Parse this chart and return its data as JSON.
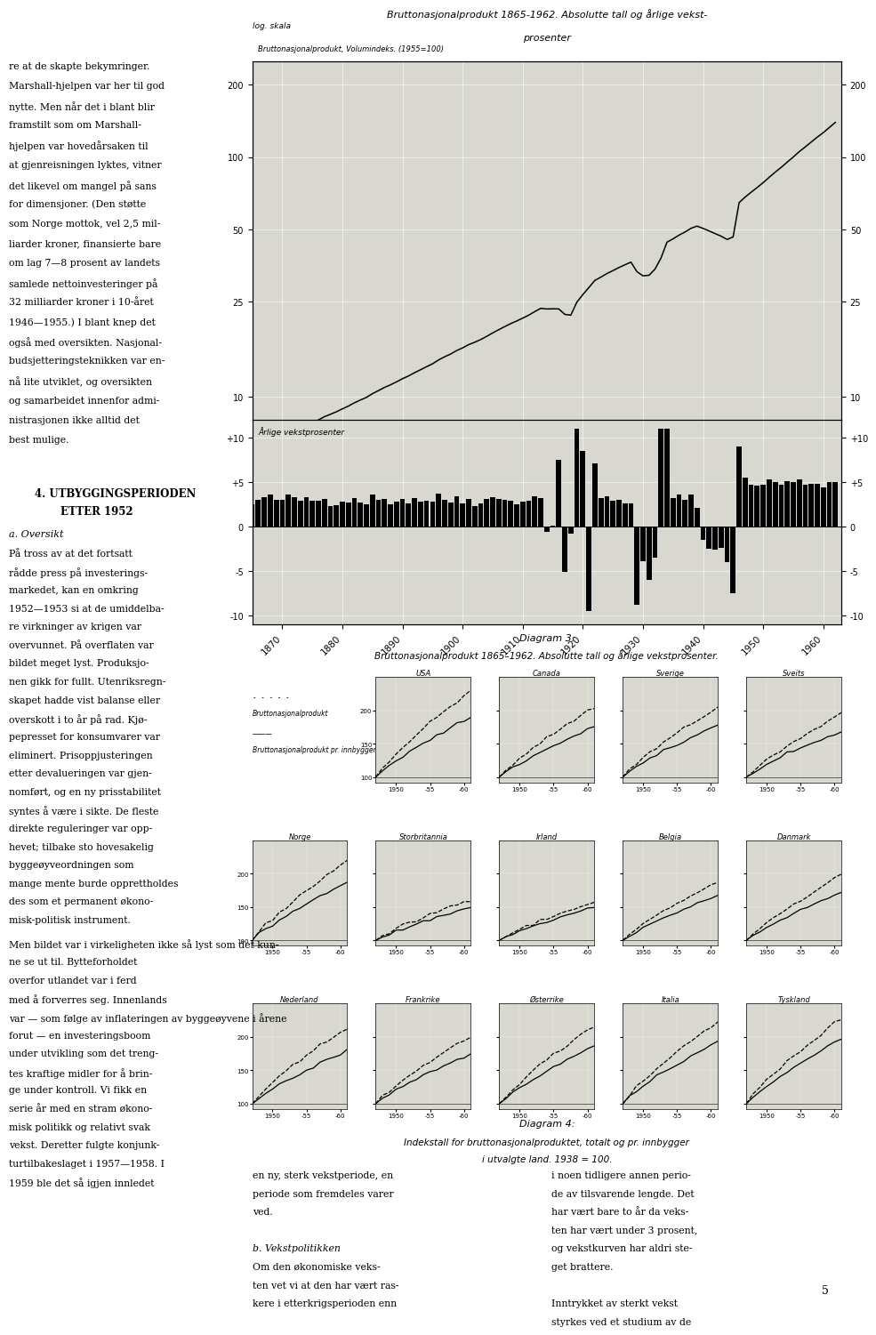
{
  "page_bg": "#f5f5f0",
  "chart_bg": "#d8d8d0",
  "chart_border": "#333333",
  "line_color": "#000000",
  "bar_color": "#000000",
  "title1": "Bruttonasjonalprodukt 1865-1962. Absolutte tall og årlige vekst-",
  "title2": "prosenter",
  "log_label": "log. skala",
  "sub_label": "Bruttonasjonalprodukt, Volumindeks. (1955=100)",
  "bar_section_label": "Årlige vekstprosenter",
  "log_yticks": [
    10,
    25,
    50,
    100,
    200
  ],
  "bar_yticks": [
    -10,
    -5,
    0,
    5,
    10
  ],
  "bar_ytick_labels": [
    "-10",
    "-5",
    "0",
    "+5",
    "+10"
  ],
  "xticks": [
    1870,
    1880,
    1890,
    1900,
    1910,
    1920,
    1930,
    1940,
    1950,
    1960
  ],
  "caption3_line1": "Diagram 3:",
  "caption3_line2": "Bruttonasjonalprodukt 1865–1962. Absolutte tall og årlige vekstprosenter.",
  "caption4_line1": "Diagram 4:",
  "caption4_line2": "Indekstall for bruttonasjonalproduktet, totalt og pr. innbygger",
  "caption4_line3": "i utvalgte land. 1938 = 100.",
  "d4_legend_dashed": "Bruttonasjonalprodukt",
  "d4_legend_solid": "Bruttonasjonalprodukt pr. innbygger",
  "d4_row1": [
    "USA",
    "Canada",
    "Sverige",
    "Sveits"
  ],
  "d4_row2": [
    "Norge",
    "Storbritannia",
    "Irland",
    "Belgia",
    "Danmark"
  ],
  "d4_row3": [
    "Nederland",
    "Frankrike",
    "Østerrike",
    "Italia",
    "Tyskland"
  ],
  "left_col_texts": [
    "re at de skapte bekymringer.",
    "Marshall-hjelpen var her til god",
    "nytte. Men når det i blant blir",
    "framstilt som om Marshall-",
    "hjelpen var hovedårsaken til",
    "at gjenreisningen lyktes, vitner",
    "det likevel om mangel på sans",
    "for dimensjoner. (Den støtte",
    "som Norge mottok, vel 2,5 mil-",
    "liarder kroner, finansierte bare",
    "om lag 7—8 prosent av landets",
    "samlede nettoinvesteringer på",
    "32 milliarder kroner i 10-året",
    "1946—1955.) I blant knep det",
    "også med oversikten. Nasjonal-",
    "budsjetteringsteknikken var en-",
    "nå lite utviklet, og oversikten",
    "og samarbeidet innenfor admi-",
    "nistrasjonen ikke alltid det",
    "best mulige."
  ]
}
